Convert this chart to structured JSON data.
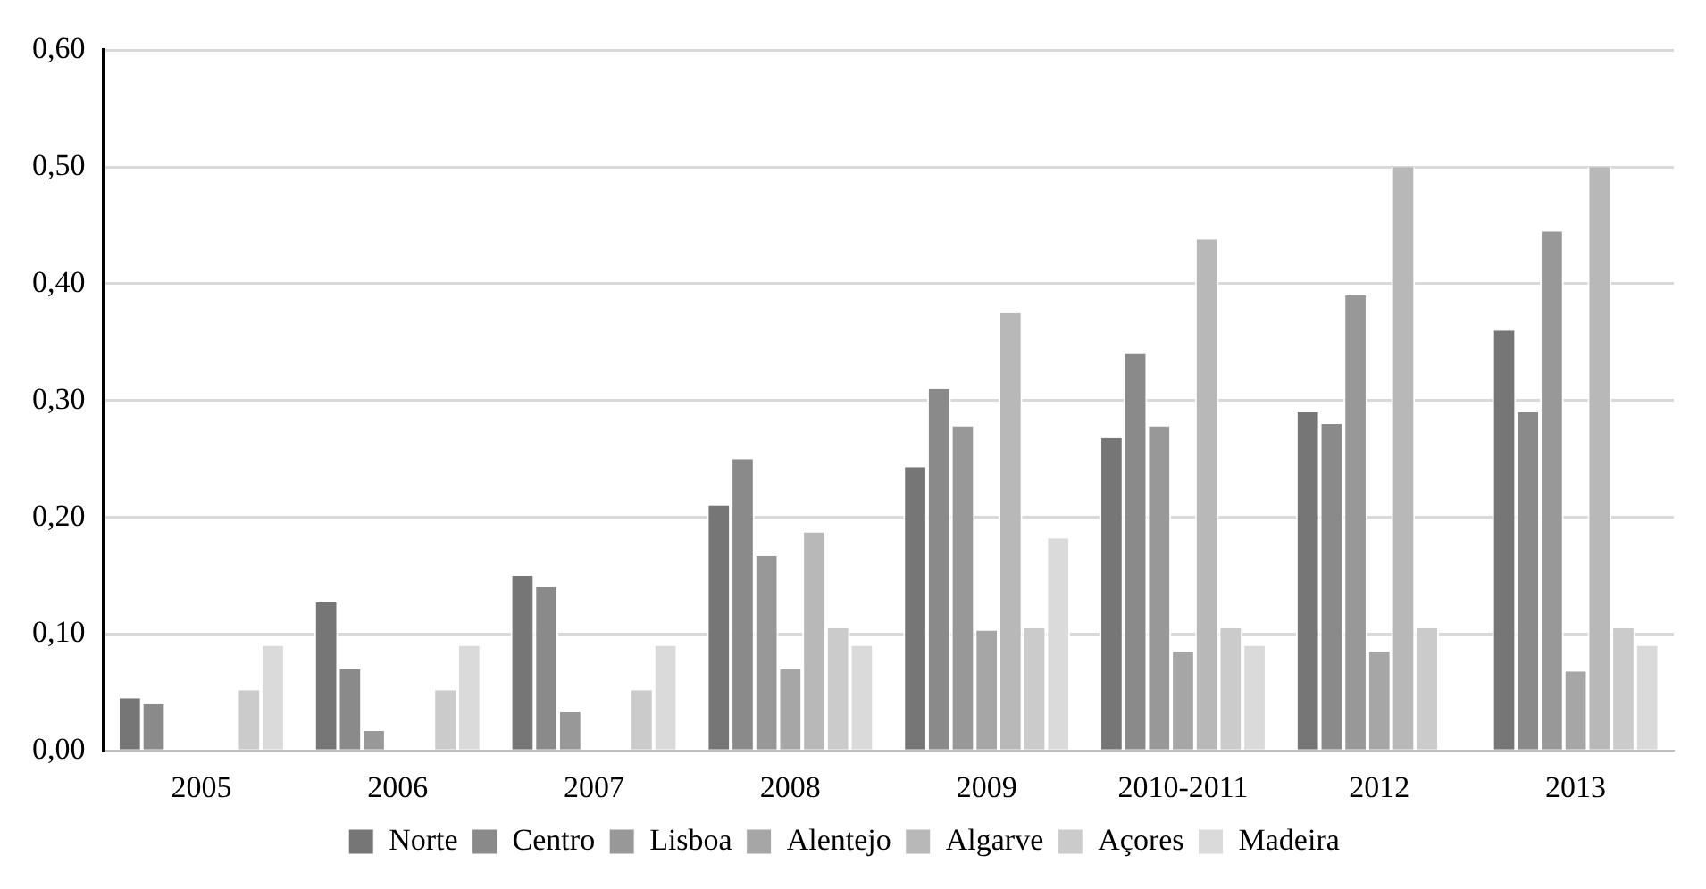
{
  "chart_data": {
    "type": "bar",
    "categories": [
      "2005",
      "2006",
      "2007",
      "2008",
      "2009",
      "2010-2011",
      "2012",
      "2013"
    ],
    "series": [
      {
        "name": "Norte",
        "color": "#767676",
        "values": [
          0.045,
          0.127,
          0.15,
          0.21,
          0.243,
          0.268,
          0.29,
          0.36
        ]
      },
      {
        "name": "Centro",
        "color": "#8a8a8a",
        "values": [
          0.04,
          0.07,
          0.14,
          0.25,
          0.31,
          0.34,
          0.28,
          0.29
        ]
      },
      {
        "name": "Lisboa",
        "color": "#989898",
        "values": [
          0,
          0.017,
          0.033,
          0.167,
          0.278,
          0.278,
          0.39,
          0.445
        ]
      },
      {
        "name": "Alentejo",
        "color": "#a6a6a6",
        "values": [
          0,
          0,
          0,
          0.07,
          0.103,
          0.085,
          0.085,
          0.068
        ]
      },
      {
        "name": "Algarve",
        "color": "#b8b8b8",
        "values": [
          0,
          0,
          0,
          0.187,
          0.375,
          0.438,
          0.5,
          0.5
        ]
      },
      {
        "name": "Açores",
        "color": "#cbcbcb",
        "values": [
          0.052,
          0.052,
          0.052,
          0.105,
          0.105,
          0.105,
          0.105,
          0.105
        ]
      },
      {
        "name": "Madeira",
        "color": "#dadada",
        "values": [
          0.09,
          0.09,
          0.09,
          0.09,
          0.182,
          0.09,
          0,
          0.09
        ]
      }
    ],
    "ylim": [
      0,
      0.6
    ],
    "yticks": [
      {
        "value": 0,
        "label": "0,00"
      },
      {
        "value": 0.1,
        "label": "0,10"
      },
      {
        "value": 0.2,
        "label": "0,20"
      },
      {
        "value": 0.3,
        "label": "0,30"
      },
      {
        "value": 0.4,
        "label": "0,40"
      },
      {
        "value": 0.5,
        "label": "0,50"
      },
      {
        "value": 0.6,
        "label": "0,60"
      }
    ],
    "grid": "y",
    "legend": "bottom"
  }
}
